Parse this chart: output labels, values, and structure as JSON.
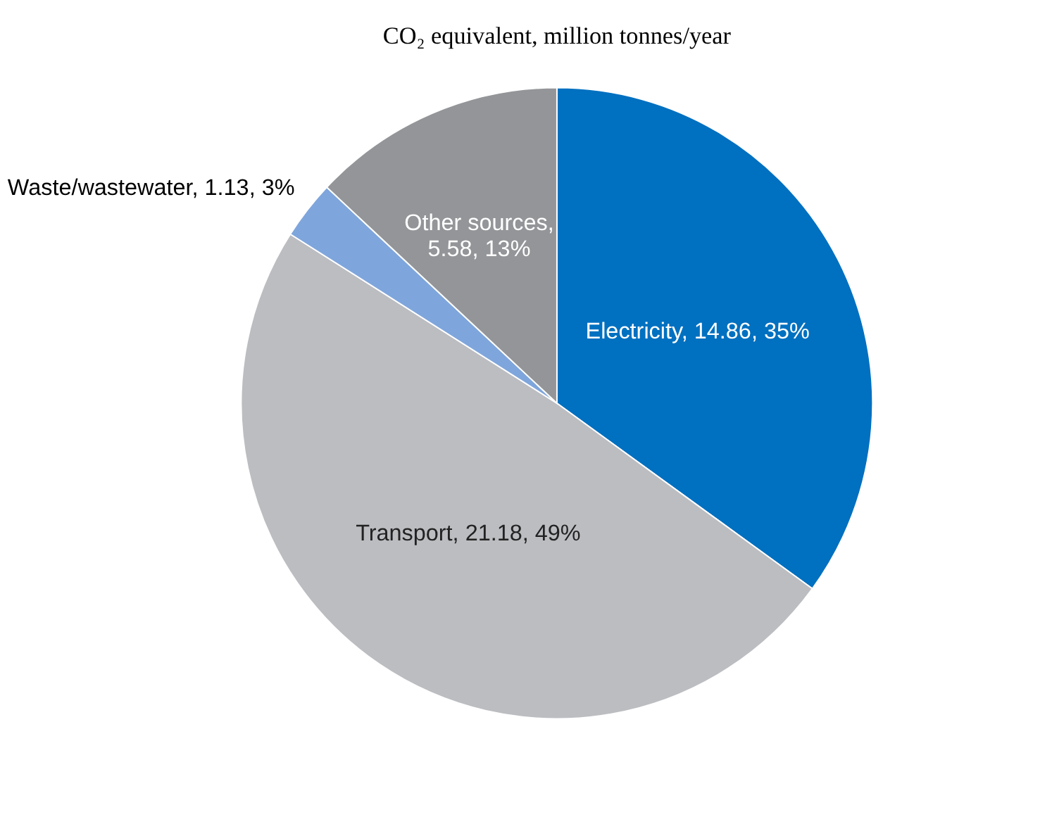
{
  "chart_data": {
    "type": "pie",
    "title": "CO₂ equivalent, million tonnes/year",
    "categories": [
      "Electricity, 14.86",
      "Transport, 21.18",
      "Waste/wastewater, 1.13",
      "Other sources, 5.58"
    ],
    "values": [
      35,
      49,
      3,
      13
    ],
    "value_labels": [
      "35%",
      "49%",
      "3%",
      "13%"
    ],
    "colors": [
      "#0070c0",
      "#bcbdc1",
      "#7fa6dc",
      "#939598"
    ]
  }
}
